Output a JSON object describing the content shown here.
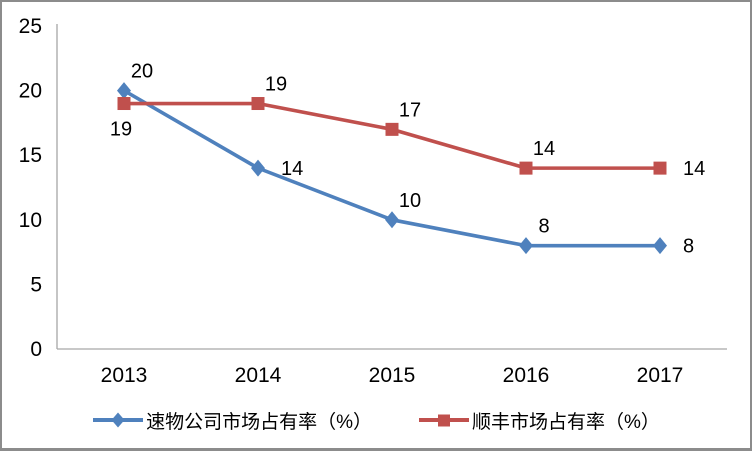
{
  "chart_data": {
    "type": "line",
    "title": "",
    "categories": [
      "2013",
      "2014",
      "2015",
      "2016",
      "2017"
    ],
    "series": [
      {
        "name": "速物公司市场占有率（%）",
        "values": [
          20,
          14,
          10,
          8,
          8
        ],
        "color": "#4F81BD",
        "marker": "diamond",
        "label_positions": [
          "above",
          "right",
          "above",
          "above",
          "right"
        ]
      },
      {
        "name": "顺丰市场占有率（%）",
        "values": [
          19,
          19,
          17,
          14,
          14
        ],
        "color": "#C0504D",
        "marker": "square",
        "label_positions": [
          "below",
          "above",
          "above",
          "above",
          "right"
        ]
      }
    ],
    "y_ticks": [
      0,
      5,
      10,
      15,
      20,
      25
    ],
    "ylim": [
      0,
      25
    ],
    "xlabel": "",
    "ylabel": "",
    "grid": false,
    "legend_position": "bottom",
    "axis_color": "#A6A6A6",
    "text_color": "#000000",
    "frame_border_color": "#8C8C8C"
  }
}
